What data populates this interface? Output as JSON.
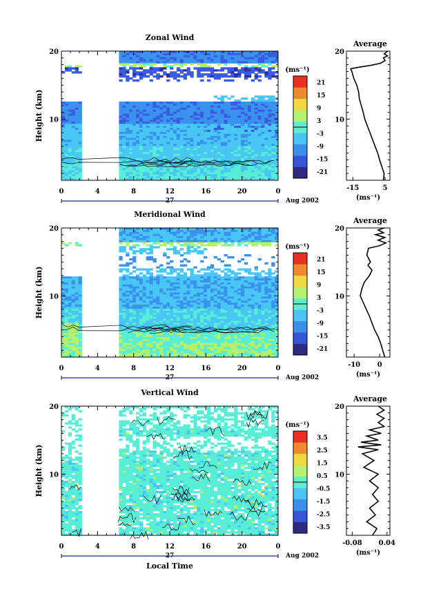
{
  "chart_data": [
    {
      "type": "heatmap",
      "title": "Zonal Wind",
      "ylabel": "Height (km)",
      "xlabel": "",
      "x_ticks": [
        "0",
        "4",
        "8",
        "12",
        "16",
        "20",
        "0"
      ],
      "y_ticks": [
        "20",
        "10"
      ],
      "xlim": [
        0,
        24
      ],
      "ylim": [
        1,
        20
      ],
      "date_label": "27",
      "month_label": "Aug 2002",
      "colorbar": {
        "unit": "(ms⁻¹)",
        "ticks": [
          "21",
          "15",
          "9",
          "3",
          "-3",
          "-9",
          "-15",
          "-21"
        ],
        "range": [
          -24,
          24
        ]
      },
      "data_gap_hours": [
        2.2,
        6.2
      ],
      "profile": {
        "title": "Average",
        "x_ticks": [
          "-15",
          "5"
        ],
        "xlim": [
          -19,
          8
        ],
        "y_ticks": [
          "20",
          "10"
        ],
        "ylim": [
          1,
          20
        ],
        "xunit": "(ms⁻¹)",
        "points": [
          [
            4.0,
            1
          ],
          [
            4.4,
            2
          ],
          [
            3.0,
            3
          ],
          [
            1.6,
            4
          ],
          [
            0.4,
            5
          ],
          [
            -1.2,
            6
          ],
          [
            -2.8,
            7
          ],
          [
            -4.4,
            8
          ],
          [
            -6.0,
            9
          ],
          [
            -7.6,
            10
          ],
          [
            -8.6,
            11
          ],
          [
            -9.8,
            12
          ],
          [
            -11.0,
            13
          ],
          [
            -11.4,
            14
          ],
          [
            -12.6,
            15
          ],
          [
            -14.4,
            16
          ],
          [
            -15.6,
            17
          ],
          [
            -16.4,
            17.4
          ],
          [
            -12.0,
            17.6
          ],
          [
            -4.0,
            17.9
          ],
          [
            2.0,
            18.2
          ],
          [
            5.0,
            18.6
          ],
          [
            4.0,
            19.0
          ],
          [
            6.5,
            19.3
          ],
          [
            4.5,
            19.6
          ],
          [
            6.6,
            20
          ]
        ]
      }
    },
    {
      "type": "heatmap",
      "title": "Meridional Wind",
      "ylabel": "Height (km)",
      "xlabel": "",
      "x_ticks": [
        "0",
        "4",
        "8",
        "12",
        "16",
        "20",
        "0"
      ],
      "y_ticks": [
        "20",
        "10"
      ],
      "xlim": [
        0,
        24
      ],
      "ylim": [
        1,
        20
      ],
      "date_label": "27",
      "month_label": "Aug 2002",
      "colorbar": {
        "unit": "(ms⁻¹)",
        "ticks": [
          "21",
          "15",
          "9",
          "3",
          "-3",
          "-9",
          "-15",
          "-21"
        ],
        "range": [
          -24,
          24
        ]
      },
      "data_gap_hours": [
        2.2,
        6.2
      ],
      "profile": {
        "title": "Average",
        "x_ticks": [
          "-10",
          "0"
        ],
        "xlim": [
          -13,
          4
        ],
        "y_ticks": [
          "20",
          "10"
        ],
        "ylim": [
          1,
          20
        ],
        "xunit": "(ms⁻¹)",
        "points": [
          [
            2.0,
            1
          ],
          [
            1.2,
            2
          ],
          [
            0.4,
            3
          ],
          [
            -0.6,
            4
          ],
          [
            -2.0,
            5
          ],
          [
            -3.0,
            6
          ],
          [
            -4.0,
            7
          ],
          [
            -5.2,
            8
          ],
          [
            -6.4,
            9
          ],
          [
            -7.6,
            10
          ],
          [
            -7.0,
            11
          ],
          [
            -6.0,
            12
          ],
          [
            -4.0,
            13
          ],
          [
            -3.0,
            13.8
          ],
          [
            -4.6,
            14.5
          ],
          [
            -3.6,
            15
          ],
          [
            -5.0,
            16
          ],
          [
            -4.4,
            17
          ],
          [
            0.0,
            17.4
          ],
          [
            2.4,
            17.8
          ],
          [
            -0.6,
            18.2
          ],
          [
            2.0,
            18.6
          ],
          [
            -1.6,
            19.0
          ],
          [
            1.5,
            19.3
          ],
          [
            -0.6,
            19.7
          ],
          [
            1.8,
            20
          ]
        ]
      }
    },
    {
      "type": "heatmap",
      "title": "Vertical Wind",
      "ylabel": "Height (km)",
      "xlabel": "Local Time",
      "x_ticks": [
        "0",
        "4",
        "8",
        "12",
        "16",
        "20",
        "0"
      ],
      "y_ticks": [
        "20",
        "10"
      ],
      "xlim": [
        0,
        24
      ],
      "ylim": [
        1,
        20
      ],
      "date_label": "27",
      "month_label": "Aug 2002",
      "colorbar": {
        "unit": "(ms⁻¹)",
        "ticks": [
          "3.5",
          "2.5",
          "1.5",
          "0.5",
          "-0.5",
          "-1.5",
          "-2.5",
          "-3.5"
        ],
        "range": [
          -4,
          4
        ]
      },
      "data_gap_hours": [
        2.2,
        6.2
      ],
      "profile": {
        "title": "Average",
        "x_ticks": [
          "-0.08",
          "0.04"
        ],
        "xlim": [
          -0.1,
          0.05
        ],
        "y_ticks": [
          "20",
          "10"
        ],
        "ylim": [
          1,
          20
        ],
        "xunit": "(ms⁻¹)",
        "points": [
          [
            -0.01,
            1
          ],
          [
            0.005,
            2
          ],
          [
            -0.03,
            3
          ],
          [
            0.0,
            4
          ],
          [
            -0.02,
            5
          ],
          [
            0.01,
            6
          ],
          [
            -0.01,
            7
          ],
          [
            0.01,
            8
          ],
          [
            -0.02,
            9
          ],
          [
            0.01,
            10
          ],
          [
            -0.04,
            11
          ],
          [
            -0.005,
            12
          ],
          [
            -0.045,
            13
          ],
          [
            0.01,
            13.6
          ],
          [
            -0.06,
            14
          ],
          [
            0.02,
            14.3
          ],
          [
            -0.05,
            14.7
          ],
          [
            0.01,
            15
          ],
          [
            -0.03,
            15.6
          ],
          [
            0.02,
            16
          ],
          [
            -0.02,
            16.5
          ],
          [
            0.03,
            17
          ],
          [
            0.01,
            17.6
          ],
          [
            0.03,
            18.2
          ],
          [
            0.005,
            18.8
          ],
          [
            0.03,
            19.4
          ],
          [
            0.01,
            20
          ]
        ]
      }
    }
  ]
}
